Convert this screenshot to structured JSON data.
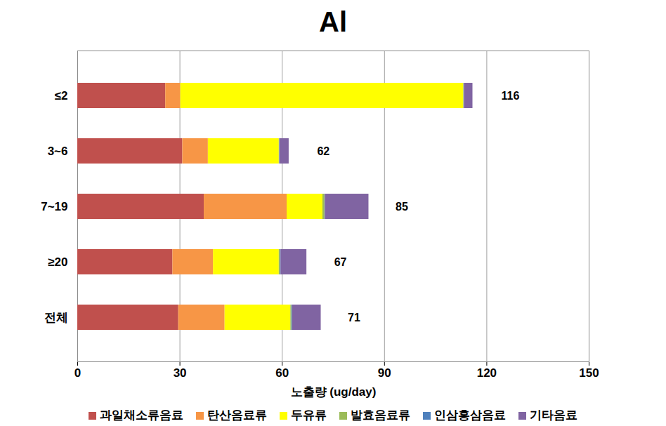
{
  "chart_data": {
    "type": "bar",
    "title": "Al",
    "orientation": "horizontal",
    "stacked": true,
    "grid": true,
    "legend": "bottom",
    "x_label": "노출량 (ug/day)",
    "categories": [
      "≤2",
      "3~6",
      "7~19",
      "≥20",
      "전체"
    ],
    "series": [
      {
        "name": "과일채소류음료",
        "color": "#c0504d",
        "values": [
          25.8,
          30.8,
          37.1,
          27.9,
          29.6
        ]
      },
      {
        "name": "탄산음료류",
        "color": "#f79646",
        "values": [
          4.4,
          7.5,
          24.3,
          11.9,
          13.6
        ]
      },
      {
        "name": "두유류",
        "color": "#ffff00",
        "values": [
          83.0,
          20.8,
          10.5,
          19.3,
          19.3
        ]
      },
      {
        "name": "발효음료류",
        "color": "#9bbb59",
        "values": [
          0.1,
          0.1,
          0.6,
          0.3,
          0.3
        ]
      },
      {
        "name": "인삼홍삼음료",
        "color": "#4f81bd",
        "values": [
          0.1,
          0.1,
          0.1,
          0.2,
          0.2
        ]
      },
      {
        "name": "기타음료",
        "color": "#8064a2",
        "values": [
          2.5,
          2.7,
          12.8,
          7.6,
          8.4
        ]
      }
    ],
    "totals": [
      116,
      62,
      85,
      67,
      71
    ],
    "xlim": [
      0,
      150
    ],
    "xticks": [
      0,
      30,
      60,
      90,
      120,
      150
    ]
  }
}
